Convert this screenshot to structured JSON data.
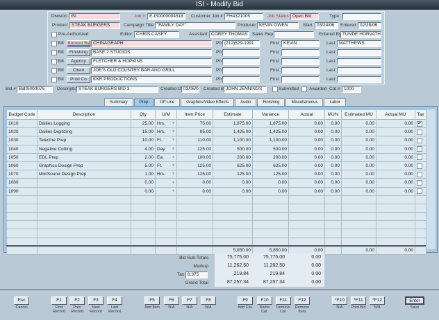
{
  "window": {
    "title": "ISI - Modify Bid"
  },
  "header": {
    "division_label": "Division",
    "division": "ISI",
    "job_label": "Job #",
    "job": "E-IS0000004518",
    "customer_job_label": "Customer Job #",
    "customer_job": "FH4321005",
    "job_status_label": "Job Status",
    "job_status": "Open Bid",
    "type_label": "Type",
    "type": "",
    "product_label": "Product",
    "product": "STEAK BURGERS",
    "campaign_label": "Campaign Title",
    "campaign": "\"FAMILY DAY\"",
    "producer_label": "Producer",
    "producer": "KEVIN OWEN",
    "start_label": "Start",
    "start": "03/24/06",
    "entered_label": "Entered",
    "entered": "02/28/06",
    "preauth_label": "Pre-Authorized",
    "editor_label": "Editor",
    "editor": "CHRIS CASEY",
    "assistant_label": "Assistant",
    "assistant": "COREY THOMAS",
    "sales_rep_label": "Sales Rep",
    "sales_rep": "",
    "entered_by_label": "Entered By",
    "entered_by": "TUNDE HORVATH",
    "bill_label": "Bill",
    "ph_label": "Ph",
    "first_label": "First",
    "last_label": "Last",
    "contacts": [
      {
        "role": "Booked By",
        "name": "CHINAGRAPH",
        "ph": "(212)529-1991",
        "first": "KEVIN",
        "last": "MATTHEWS"
      },
      {
        "role": "Finishing",
        "name": "BASE 2 STUDIOS",
        "ph": "",
        "first": "",
        "last": ""
      },
      {
        "role": "Agency",
        "name": "FLETCHER & HOPKINS",
        "ph": "",
        "first": "",
        "last": ""
      },
      {
        "role": "Client",
        "name": "JOE'S OLD COUNTRY BAR AND GRILL",
        "ph": "",
        "first": "",
        "last": ""
      },
      {
        "role": "Prod Co",
        "name": "KKR PRODUCTIONS",
        "ph": "",
        "first": "",
        "last": ""
      }
    ]
  },
  "bid": {
    "bid_label": "Bid #",
    "bid": "BidIS000075",
    "desc_label": "Description",
    "desc": "STEAK BURGERS BID 3",
    "created_on_label": "Created On",
    "created_on": "03/06/06",
    "created_by_label": "Created By",
    "created_by": "JOHN JENNINGS",
    "submitted_label": "Submitted",
    "awarded_label": "Awarded",
    "cat_label": "Cat #",
    "cat": "1000"
  },
  "tabs": [
    "Summary",
    "Prep",
    "Off Line",
    "Graphics/Video Effects",
    "Audio",
    "Finishing",
    "Miscellaneous",
    "Labor"
  ],
  "active_tab": "Prep",
  "table": {
    "columns": [
      "Budget Code",
      "Description",
      "Qty",
      "U/M",
      "Item Price",
      "Estimate",
      "Variance",
      "Actual",
      "MU%",
      "Estimated MU",
      "Actual MU",
      "Tax"
    ],
    "rows": [
      [
        "1010",
        "Dailies Logging",
        "25.00",
        "Hrs.",
        "75.00",
        "1,875.00",
        "1,875.00",
        "0.00",
        "0.00",
        "0.00",
        "0.00",
        true
      ],
      [
        "1020",
        "Dailies Digitizing",
        "15.00",
        "Hrs.",
        "95.00",
        "1,425.00",
        "1,425.00",
        "0.00",
        "0.00",
        "0.00",
        "0.00",
        false
      ],
      [
        "1030",
        "Telecine Prep",
        "10.00",
        "Ft.",
        "110.00",
        "1,100.00",
        "1,100.00",
        "0.00",
        "0.00",
        "0.00",
        "0.00",
        false
      ],
      [
        "1040",
        "Negative Cutting",
        "4.00",
        "Day",
        "125.00",
        "500.00",
        "500.00",
        "0.00",
        "0.00",
        "0.00",
        "0.00",
        false
      ],
      [
        "1050",
        "EDL Prep",
        "2.00",
        "Ea.",
        "100.00",
        "200.00",
        "200.00",
        "0.00",
        "0.00",
        "0.00",
        "0.00",
        false
      ],
      [
        "1060",
        "Graphics Design Prep",
        "5.00",
        "Ft.",
        "125.00",
        "625.00",
        "625.00",
        "0.00",
        "0.00",
        "0.00",
        "0.00",
        false
      ],
      [
        "1070",
        "Mix/Sound Design Prep",
        "1.00",
        "Hrs.",
        "125.00",
        "125.00",
        "125.00",
        "0.00",
        "0.00",
        "0.00",
        "0.00",
        false
      ],
      [
        "1080",
        "",
        "0.00",
        "",
        "0.00",
        "0.00",
        "0.00",
        "0.00",
        "0.00",
        "0.00",
        "0.00",
        false
      ],
      [
        "1090",
        "",
        "0.00",
        "",
        "0.00",
        "0.00",
        "0.00",
        "0.00",
        "0.00",
        "0.00",
        "0.00",
        false
      ]
    ],
    "totals": {
      "estimate": "5,850.00",
      "variance": "5,850.00",
      "actual": "0.00",
      "estimated_mu": "0.00",
      "actual_mu": "0.00"
    }
  },
  "summary": {
    "subtotal_label": "Bid Sub-Totals",
    "markup_label": "Markup",
    "tax_label": "Tax",
    "tax_rate": "8.375",
    "grand_label": "Grand Total",
    "rows": [
      [
        "75,775.00",
        "75,775.00",
        "0.00"
      ],
      [
        "11,262.50",
        "11,262.50",
        "0.00"
      ],
      [
        "219.84",
        "219.84",
        "0.00"
      ],
      [
        "87,257.34",
        "87,257.34",
        "0.00"
      ]
    ]
  },
  "fkeys": [
    {
      "key": "Esc",
      "desc": "Cancel"
    },
    {
      "key": "F1",
      "desc": "First Record"
    },
    {
      "key": "F2",
      "desc": "Prev Record"
    },
    {
      "key": "F3",
      "desc": "Next Record"
    },
    {
      "key": "F4",
      "desc": "Last Record"
    },
    {
      "key": "F5",
      "desc": "Add Item"
    },
    {
      "key": "F6",
      "desc": "N/A"
    },
    {
      "key": "F7",
      "desc": "N/A"
    },
    {
      "key": "F8",
      "desc": "N/A"
    },
    {
      "key": "F9",
      "desc": "Add Cat."
    },
    {
      "key": "F10",
      "desc": "Name Cat."
    },
    {
      "key": "F11",
      "desc": "Remove Cat."
    },
    {
      "key": "F12",
      "desc": "Remove Item"
    },
    {
      "key": "*F10",
      "desc": "N/A"
    },
    {
      "key": "*F11",
      "desc": "Print Bid"
    },
    {
      "key": "*F12",
      "desc": "N/A"
    },
    {
      "key": "Enter",
      "desc": "Save"
    }
  ]
}
